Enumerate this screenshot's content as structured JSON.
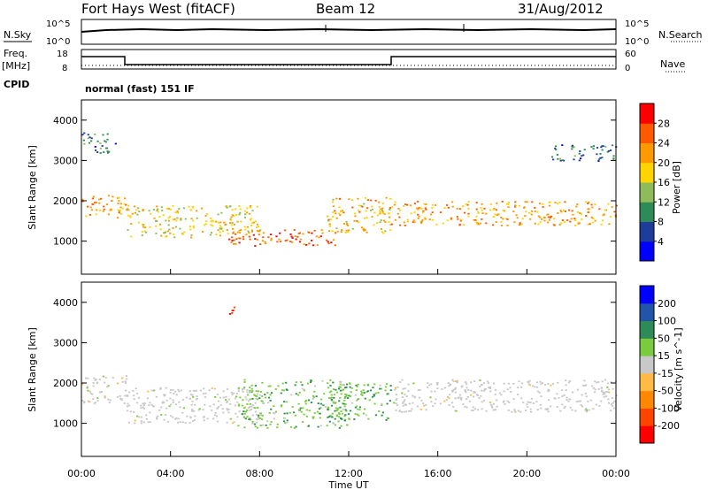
{
  "header": {
    "station": "Fort Hays West (fitACF)",
    "beam": "Beam 12",
    "date": "31/Aug/2012"
  },
  "top_panel": {
    "left_label": "N.Sky",
    "right_label": "N.Search",
    "y_ticks": [
      "10^5",
      "10^0"
    ]
  },
  "freq_panel": {
    "left_label_1": "Freq.",
    "left_label_2": "[MHz]",
    "left_ticks": [
      "18",
      "8"
    ],
    "right_label": "Nave",
    "right_ticks": [
      "60",
      "0"
    ]
  },
  "cpid_panel": {
    "label": "CPID",
    "program": "normal (fast) 151 IF"
  },
  "colors": {
    "power_scale": [
      "#0000ff",
      "#1e3c9a",
      "#2e8b57",
      "#8fbc5a",
      "#ffd400",
      "#ff9900",
      "#ff5a00",
      "#ff0000"
    ],
    "velocity_scale": [
      "#ff0000",
      "#ff4400",
      "#ff8800",
      "#ffbb44",
      "#c8c8c8",
      "#7acc3e",
      "#2e8b57",
      "#2255aa",
      "#0000ff"
    ],
    "ground_scatter": "#c8c8c8"
  },
  "chart_data": [
    {
      "type": "heatmap",
      "title": "Power",
      "xlabel": "",
      "ylabel": "Slant Range [km]",
      "colorbar_label": "Power [dB]",
      "colorbar_ticks": [
        "4",
        "8",
        "12",
        "16",
        "20",
        "24",
        "28"
      ],
      "y_ticks": [
        "1000",
        "2000",
        "3000",
        "4000"
      ],
      "ylim": [
        180,
        4500
      ],
      "x_ticks": [
        "00:00",
        "04:00",
        "08:00",
        "12:00",
        "16:00",
        "20:00",
        "00:00"
      ],
      "xlim": [
        0,
        24
      ],
      "features": [
        {
          "x": [
            0.0,
            2.0
          ],
          "y_km": [
            1600,
            2200
          ],
          "power_db": 22
        },
        {
          "x": [
            2.0,
            8.0
          ],
          "y_km": [
            1100,
            1900
          ],
          "power_db": 18
        },
        {
          "x": [
            6.5,
            11.5
          ],
          "y_km": [
            900,
            1300
          ],
          "power_db": 26
        },
        {
          "x": [
            11.0,
            14.0
          ],
          "y_km": [
            1200,
            2100
          ],
          "power_db": 20
        },
        {
          "x": [
            14.0,
            24.0
          ],
          "y_km": [
            1400,
            2000
          ],
          "power_db": 22
        },
        {
          "x": [
            0.0,
            1.5
          ],
          "y_km": [
            3200,
            3700
          ],
          "power_db": 8
        },
        {
          "x": [
            21.0,
            24.0
          ],
          "y_km": [
            3000,
            3400
          ],
          "power_db": 8
        }
      ]
    },
    {
      "type": "heatmap",
      "title": "Velocity",
      "xlabel": "Time UT",
      "ylabel": "Slant Range [km]",
      "colorbar_label": "Velocity [m s^-1]",
      "colorbar_ticks": [
        "-200",
        "-100",
        "-50",
        "-15",
        "15",
        "50",
        "100",
        "200"
      ],
      "y_ticks": [
        "1000",
        "2000",
        "3000",
        "4000"
      ],
      "ylim": [
        180,
        4500
      ],
      "x_ticks": [
        "00:00",
        "04:00",
        "08:00",
        "12:00",
        "16:00",
        "20:00",
        "00:00"
      ],
      "xlim": [
        0,
        24
      ],
      "features": [
        {
          "x": [
            0.0,
            2.0
          ],
          "y_km": [
            1500,
            2200
          ],
          "velocity": 0
        },
        {
          "x": [
            2.0,
            8.0
          ],
          "y_km": [
            1000,
            1900
          ],
          "velocity": 0
        },
        {
          "x": [
            7.0,
            12.0
          ],
          "y_km": [
            900,
            2100
          ],
          "velocity": 40
        },
        {
          "x": [
            11.0,
            14.0
          ],
          "y_km": [
            1100,
            2000
          ],
          "velocity": 40
        },
        {
          "x": [
            14.0,
            24.0
          ],
          "y_km": [
            1300,
            2100
          ],
          "velocity": 0
        },
        {
          "x": [
            6.5,
            7.0
          ],
          "y_km": [
            3700,
            3950
          ],
          "velocity": -200
        }
      ]
    }
  ]
}
